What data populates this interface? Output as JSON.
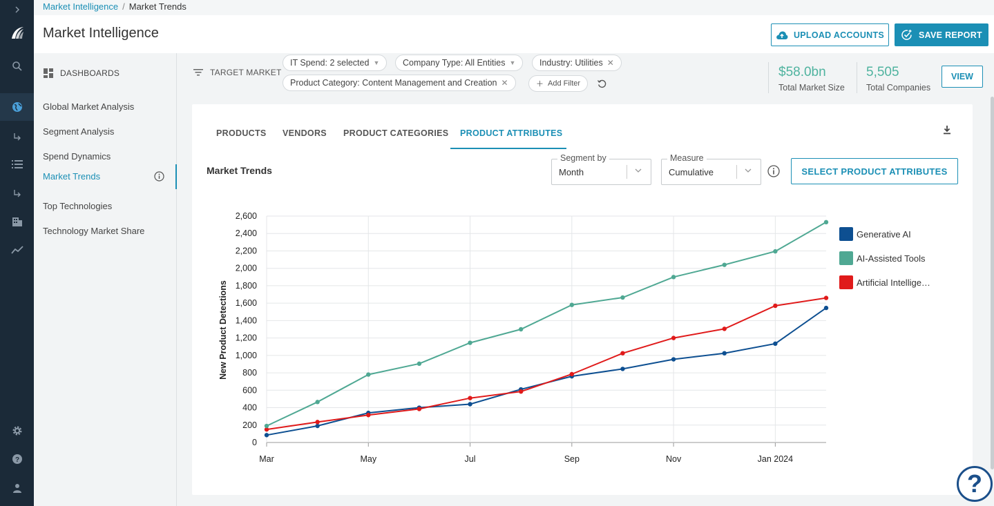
{
  "breadcrumb": {
    "parent": "Market Intelligence",
    "separator": "/",
    "current": "Market Trends"
  },
  "header": {
    "title": "Market Intelligence",
    "upload_label": "UPLOAD ACCOUNTS",
    "save_label": "SAVE REPORT"
  },
  "rail": {
    "icons": [
      "chevron-right-icon",
      "logo-icon",
      "search-icon",
      "globe-icon",
      "sub-arrow-icon",
      "list-icon",
      "sub-arrow-icon",
      "building-icon",
      "trend-icon",
      "gear-icon",
      "help-icon",
      "user-icon"
    ]
  },
  "sidebar": {
    "heading": "DASHBOARDS",
    "items": [
      {
        "label": "Global Market Analysis"
      },
      {
        "label": "Segment Analysis"
      },
      {
        "label": "Spend Dynamics"
      },
      {
        "label": "Market Trends"
      },
      {
        "label": "Top Technologies"
      },
      {
        "label": "Technology Market Share"
      }
    ]
  },
  "filters": {
    "label": "TARGET MARKET",
    "chips": [
      {
        "label": "IT Spend: 2 selected"
      },
      {
        "label": "Company Type: All Entities"
      },
      {
        "label": "Industry: Utilities"
      },
      {
        "label": "Product Category: Content Management and Creation"
      }
    ],
    "add_filter": "Add Filter"
  },
  "stats": {
    "market_size_value": "$58.0bn",
    "market_size_label": "Total Market Size",
    "companies_value": "5,505",
    "companies_label": "Total Companies",
    "view_label": "VIEW"
  },
  "tabs": [
    {
      "label": "PRODUCTS"
    },
    {
      "label": "VENDORS"
    },
    {
      "label": "PRODUCT CATEGORIES"
    },
    {
      "label": "PRODUCT ATTRIBUTES"
    }
  ],
  "panel": {
    "title": "Market Trends",
    "segment_label": "Segment by",
    "segment_value": "Month",
    "measure_label": "Measure",
    "measure_value": "Cumulative",
    "select_attributes_label": "SELECT PRODUCT ATTRIBUTES"
  },
  "colors": {
    "accent": "#1b8fb5",
    "rail": "#1b2a38",
    "stat": "#4fb39f"
  },
  "chart_data": {
    "type": "line",
    "title": "",
    "xlabel": "",
    "ylabel": "New Product Detections",
    "x": [
      "2023-03",
      "2023-04",
      "2023-05",
      "2023-06",
      "2023-07",
      "2023-08",
      "2023-09",
      "2023-10",
      "2023-11",
      "2023-12",
      "2024-01",
      "2024-02"
    ],
    "x_tick_labels": [
      "Mar",
      "May",
      "Jul",
      "Sep",
      "Nov",
      "Jan 2024"
    ],
    "y_ticks": [
      "0",
      "200",
      "400",
      "600",
      "800",
      "1,000",
      "1,200",
      "1,400",
      "1,600",
      "1,800",
      "2,000",
      "2,200",
      "2,400",
      "2,600"
    ],
    "ylim": [
      0,
      2600
    ],
    "grid": true,
    "legend_position": "right",
    "series": [
      {
        "name": "Generative AI",
        "color": "#0d4f91",
        "values": [
          85,
          190,
          340,
          400,
          440,
          610,
          760,
          845,
          955,
          1025,
          1135,
          1545
        ]
      },
      {
        "name": "AI-Assisted Tools",
        "color": "#4fa893",
        "values": [
          190,
          465,
          780,
          905,
          1145,
          1300,
          1580,
          1665,
          1900,
          2040,
          2195,
          2530
        ]
      },
      {
        "name": "Artificial Intellige…",
        "color": "#e01a1a",
        "values": [
          150,
          235,
          315,
          385,
          510,
          585,
          785,
          1025,
          1200,
          1305,
          1570,
          1660
        ]
      }
    ]
  }
}
